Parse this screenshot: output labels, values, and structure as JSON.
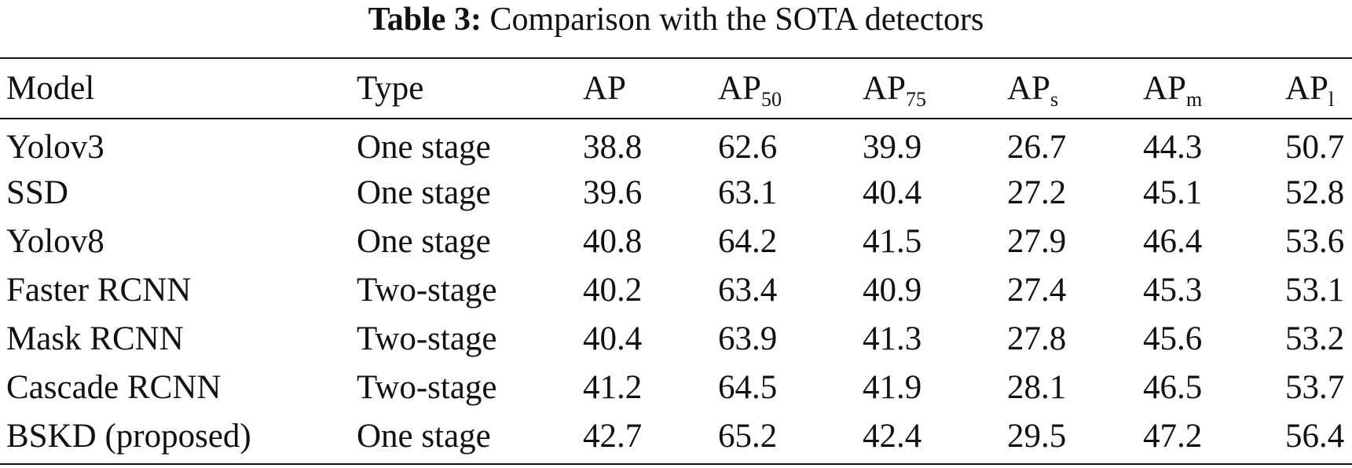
{
  "caption": {
    "label": "Table 3:",
    "text": "Comparison with the SOTA detectors"
  },
  "table": {
    "headers": [
      {
        "base": "Model",
        "sub": ""
      },
      {
        "base": "Type",
        "sub": ""
      },
      {
        "base": "AP",
        "sub": ""
      },
      {
        "base": "AP",
        "sub": "50"
      },
      {
        "base": "AP",
        "sub": "75"
      },
      {
        "base": "AP",
        "sub": "s"
      },
      {
        "base": "AP",
        "sub": "m"
      },
      {
        "base": "AP",
        "sub": "l"
      }
    ],
    "rows": [
      [
        "Yolov3",
        "One stage",
        "38.8",
        "62.6",
        "39.9",
        "26.7",
        "44.3",
        "50.7"
      ],
      [
        "SSD",
        "One stage",
        "39.6",
        "63.1",
        "40.4",
        "27.2",
        "45.1",
        "52.8"
      ],
      [
        "Yolov8",
        "One stage",
        "40.8",
        "64.2",
        "41.5",
        "27.9",
        "46.4",
        "53.6"
      ],
      [
        "Faster RCNN",
        "Two-stage",
        "40.2",
        "63.4",
        "40.9",
        "27.4",
        "45.3",
        "53.1"
      ],
      [
        "Mask RCNN",
        "Two-stage",
        "40.4",
        "63.9",
        "41.3",
        "27.8",
        "45.6",
        "53.2"
      ],
      [
        "Cascade RCNN",
        "Two-stage",
        "41.2",
        "64.5",
        "41.9",
        "28.1",
        "46.5",
        "53.7"
      ],
      [
        "BSKD (proposed)",
        "One stage",
        "42.7",
        "65.2",
        "42.4",
        "29.5",
        "47.2",
        "56.4"
      ]
    ]
  }
}
